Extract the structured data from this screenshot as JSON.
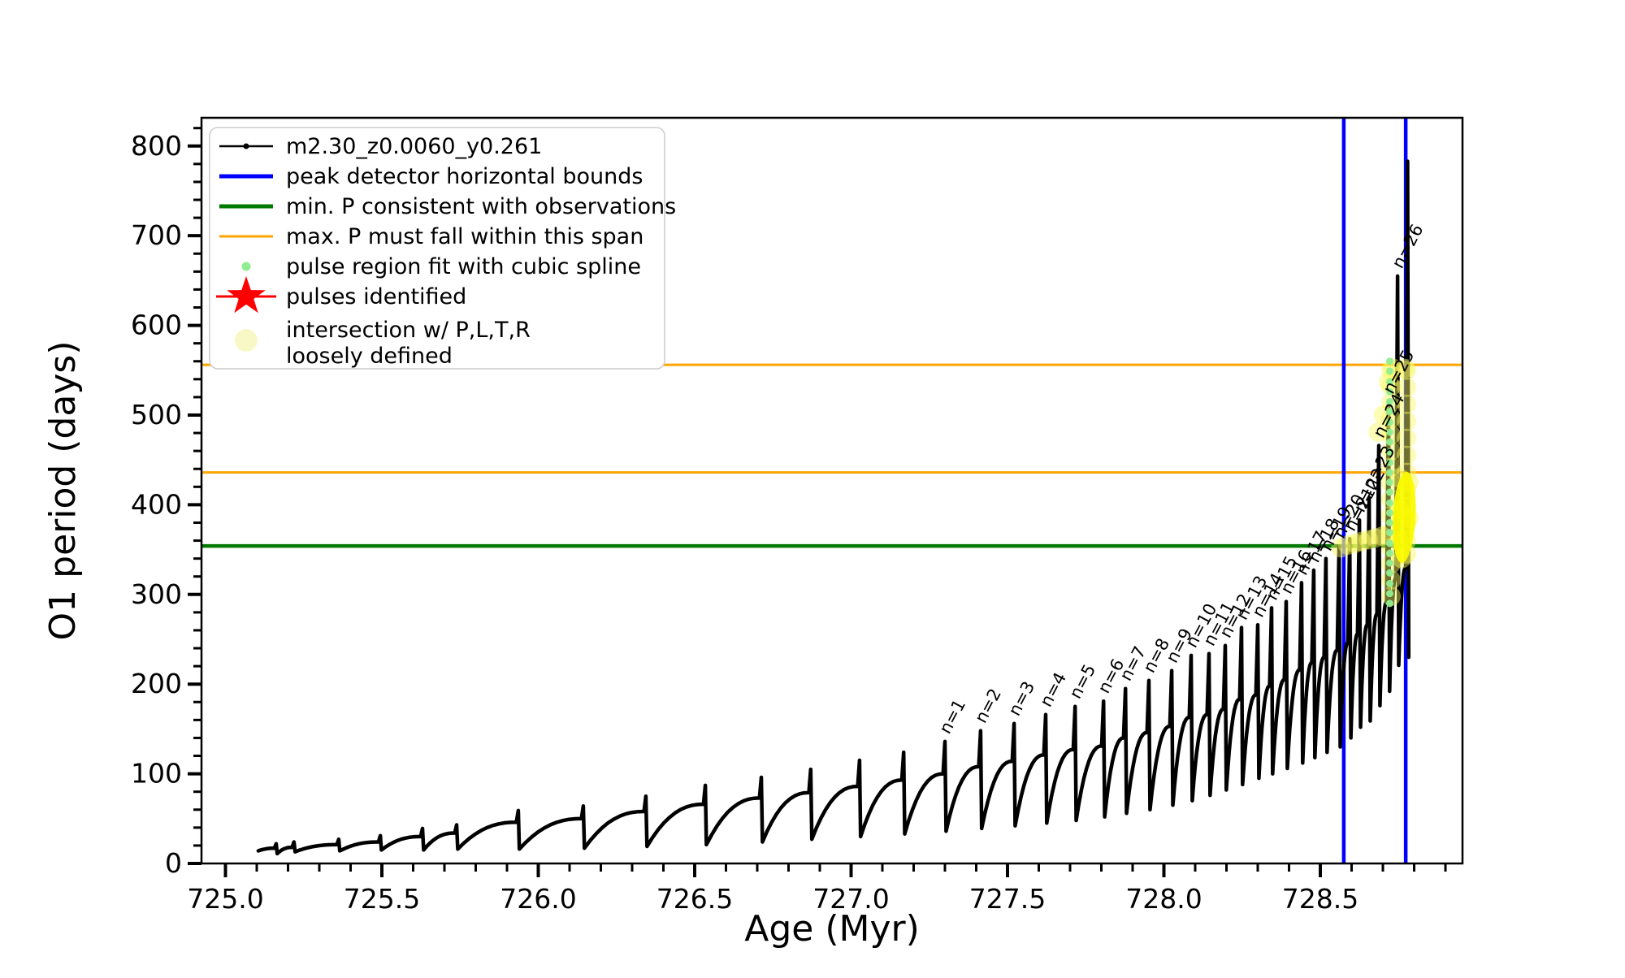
{
  "figure": {
    "xlabel": "Age (Myr)",
    "ylabel": "O1 period (days)"
  },
  "legend": {
    "entries": [
      {
        "marker": "line-dot",
        "color": "#000000",
        "lw": 2.5,
        "label": "m2.30_z0.0060_y0.261"
      },
      {
        "marker": "line",
        "color": "#0000ff",
        "lw": 5,
        "label": "peak detector horizontal bounds"
      },
      {
        "marker": "line",
        "color": "#007a00",
        "lw": 5,
        "label": "min. P consistent with observations"
      },
      {
        "marker": "line",
        "color": "#ffa500",
        "lw": 3,
        "label": "max. P must fall within this span"
      },
      {
        "marker": "dot",
        "color": "#90ee90",
        "label": "pulse region fit with cubic spline"
      },
      {
        "marker": "star",
        "color": "#ff0000",
        "label": "pulses identified"
      },
      {
        "marker": "circle",
        "color": "#f7f7c0",
        "label": "intersection w/ P,L,T,R",
        "label2": "loosely defined"
      }
    ]
  },
  "chart_data": {
    "type": "line",
    "title": "",
    "xlabel": "Age (Myr)",
    "ylabel": "O1 period (days)",
    "xlim": [
      724.9234,
      728.9545
    ],
    "ylim": [
      0,
      831.5
    ],
    "x_major_ticks": [
      {
        "v": 725.0,
        "label": "725.0"
      },
      {
        "v": 725.5,
        "label": "725.5"
      },
      {
        "v": 726.0,
        "label": "726.0"
      },
      {
        "v": 726.5,
        "label": "726.5"
      },
      {
        "v": 727.0,
        "label": "727.0"
      },
      {
        "v": 727.5,
        "label": "727.5"
      },
      {
        "v": 728.0,
        "label": "728.0"
      },
      {
        "v": 728.5,
        "label": "728.5"
      }
    ],
    "x_minor_step": 0.1,
    "y_major_ticks": [
      {
        "v": 0,
        "label": "0"
      },
      {
        "v": 100,
        "label": "100"
      },
      {
        "v": 200,
        "label": "200"
      },
      {
        "v": 300,
        "label": "300"
      },
      {
        "v": 400,
        "label": "400"
      },
      {
        "v": 500,
        "label": "500"
      },
      {
        "v": 600,
        "label": "600"
      },
      {
        "v": 700,
        "label": "700"
      },
      {
        "v": 800,
        "label": "800"
      }
    ],
    "y_minor_step": 20,
    "grid": false,
    "legend_position": "upper left",
    "hlines": [
      {
        "value": 556,
        "color": "#ffa500",
        "lw": 3,
        "meaning": "max. P span upper bound"
      },
      {
        "value": 436,
        "color": "#ffa500",
        "lw": 3,
        "meaning": "max. P span lower bound"
      },
      {
        "value": 354,
        "color": "#007a00",
        "lw": 4.5,
        "meaning": "min. P consistent with observations"
      }
    ],
    "vlines": [
      {
        "age": 728.575,
        "color": "#0000ff",
        "lw": 4.5,
        "meaning": "peak detector left bound"
      },
      {
        "age": 728.773,
        "color": "#0000ff",
        "lw": 4.5,
        "meaning": "peak detector right bound"
      }
    ],
    "series": [
      {
        "name": "m2.30_z0.0060_y0.261",
        "color": "#000000",
        "lw": 4.5,
        "start": {
          "age": 725.105,
          "value": 14
        },
        "pulses": [
          {
            "age": 725.162,
            "peak": 22,
            "shoulder": 17,
            "dip": 11
          },
          {
            "age": 725.219,
            "peak": 24,
            "shoulder": 18,
            "dip": 13
          },
          {
            "age": 725.362,
            "peak": 27,
            "shoulder": 21,
            "dip": 14
          },
          {
            "age": 725.495,
            "peak": 31,
            "shoulder": 24,
            "dip": 15
          },
          {
            "age": 725.63,
            "peak": 39,
            "shoulder": 30,
            "dip": 15
          },
          {
            "age": 725.739,
            "peak": 43,
            "shoulder": 34,
            "dip": 16
          },
          {
            "age": 725.936,
            "peak": 59,
            "shoulder": 46,
            "dip": 16
          },
          {
            "age": 726.144,
            "peak": 64,
            "shoulder": 50,
            "dip": 17
          },
          {
            "age": 726.344,
            "peak": 75,
            "shoulder": 58,
            "dip": 19
          },
          {
            "age": 726.534,
            "peak": 87,
            "shoulder": 66,
            "dip": 21
          },
          {
            "age": 726.713,
            "peak": 96,
            "shoulder": 73,
            "dip": 24
          },
          {
            "age": 726.871,
            "peak": 105,
            "shoulder": 79,
            "dip": 27
          },
          {
            "age": 727.027,
            "peak": 115,
            "shoulder": 86,
            "dip": 30
          },
          {
            "age": 727.168,
            "peak": 124,
            "shoulder": 93,
            "dip": 33
          },
          {
            "age": 727.3,
            "peak": 136,
            "shoulder": 100,
            "dip": 36,
            "label": "n=1"
          },
          {
            "age": 727.414,
            "peak": 148,
            "shoulder": 108,
            "dip": 39,
            "label": "n=2"
          },
          {
            "age": 727.521,
            "peak": 156,
            "shoulder": 114,
            "dip": 42,
            "label": "n=3"
          },
          {
            "age": 727.622,
            "peak": 166,
            "shoulder": 121,
            "dip": 45,
            "label": "n=4"
          },
          {
            "age": 727.716,
            "peak": 175,
            "shoulder": 127,
            "dip": 48,
            "label": "n=5"
          },
          {
            "age": 727.807,
            "peak": 181,
            "shoulder": 131,
            "dip": 52,
            "label": "n=6"
          },
          {
            "age": 727.877,
            "peak": 195,
            "shoulder": 140,
            "dip": 56,
            "label": "n=7"
          },
          {
            "age": 727.952,
            "peak": 204,
            "shoulder": 146,
            "dip": 60,
            "label": "n=8"
          },
          {
            "age": 728.025,
            "peak": 215,
            "shoulder": 153,
            "dip": 65,
            "label": "n=9"
          },
          {
            "age": 728.087,
            "peak": 232,
            "shoulder": 163,
            "dip": 70,
            "label": "n=10"
          },
          {
            "age": 728.144,
            "peak": 234,
            "shoulder": 166,
            "dip": 76,
            "label": "n=11"
          },
          {
            "age": 728.196,
            "peak": 243,
            "shoulder": 172,
            "dip": 82,
            "label": "n=12"
          },
          {
            "age": 728.248,
            "peak": 263,
            "shoulder": 183,
            "dip": 88,
            "label": "n=13"
          },
          {
            "age": 728.3,
            "peak": 266,
            "shoulder": 188,
            "dip": 95,
            "label": "n=14"
          },
          {
            "age": 728.344,
            "peak": 285,
            "shoulder": 198,
            "dip": 100,
            "label": "n=15"
          },
          {
            "age": 728.391,
            "peak": 292,
            "shoulder": 205,
            "dip": 106,
            "label": "n=16"
          },
          {
            "age": 728.44,
            "peak": 313,
            "shoulder": 216,
            "dip": 112,
            "label": "n=17"
          },
          {
            "age": 728.479,
            "peak": 327,
            "shoulder": 224,
            "dip": 118,
            "label": "n=18"
          },
          {
            "age": 728.518,
            "peak": 340,
            "shoulder": 230,
            "dip": 124,
            "label": "n=19"
          },
          {
            "age": 728.56,
            "peak": 354,
            "shoulder": 238,
            "dip": 130,
            "label": "n=20"
          },
          {
            "age": 728.594,
            "peak": 362,
            "shoulder": 246,
            "dip": 140,
            "label": "n=21"
          },
          {
            "age": 728.625,
            "peak": 383,
            "shoulder": 256,
            "dip": 152,
            "label": "n=22"
          },
          {
            "age": 728.656,
            "peak": 408,
            "shoulder": 266,
            "dip": 159,
            "label": "n=23"
          },
          {
            "age": 728.687,
            "peak": 466,
            "shoulder": 278,
            "dip": 176,
            "label": "n=24"
          },
          {
            "age": 728.718,
            "peak": 515,
            "shoulder": 292,
            "dip": 192,
            "label": "n=25"
          },
          {
            "age": 728.747,
            "peak": 655,
            "shoulder": 318,
            "dip": 221,
            "label": "n=26"
          },
          {
            "age": 728.779,
            "peak": 783,
            "shoulder": 330,
            "dip": 230
          }
        ]
      }
    ],
    "spline_dots": {
      "age": 728.722,
      "color": "#90ee90",
      "r": 4.5,
      "values": [
        560,
        549,
        537,
        526,
        515,
        504,
        492,
        481,
        470,
        459,
        447,
        436,
        425,
        414,
        402,
        391,
        380,
        369,
        357,
        346,
        335,
        324,
        312,
        301,
        290
      ]
    },
    "intersection_markers": {
      "color": "#f8f860",
      "r": 12,
      "opacity": 0.45,
      "points": [
        {
          "age": 728.726,
          "value": 550
        },
        {
          "age": 728.726,
          "value": 532
        },
        {
          "age": 728.726,
          "value": 514
        },
        {
          "age": 728.726,
          "value": 496
        },
        {
          "age": 728.726,
          "value": 478
        },
        {
          "age": 728.726,
          "value": 460
        },
        {
          "age": 728.726,
          "value": 442
        },
        {
          "age": 728.726,
          "value": 424
        },
        {
          "age": 728.726,
          "value": 406
        },
        {
          "age": 728.726,
          "value": 388
        },
        {
          "age": 728.726,
          "value": 370
        },
        {
          "age": 728.726,
          "value": 352
        },
        {
          "age": 728.726,
          "value": 334
        },
        {
          "age": 728.726,
          "value": 316
        },
        {
          "age": 728.726,
          "value": 298
        },
        {
          "age": 728.775,
          "value": 550
        },
        {
          "age": 728.775,
          "value": 531
        },
        {
          "age": 728.775,
          "value": 512
        },
        {
          "age": 728.775,
          "value": 493
        },
        {
          "age": 728.775,
          "value": 474
        },
        {
          "age": 728.775,
          "value": 455
        },
        {
          "age": 728.775,
          "value": 436
        },
        {
          "age": 728.775,
          "value": 417
        },
        {
          "age": 728.775,
          "value": 398
        },
        {
          "age": 728.775,
          "value": 379
        },
        {
          "age": 728.775,
          "value": 360
        },
        {
          "age": 728.775,
          "value": 345
        },
        {
          "age": 728.566,
          "value": 352
        },
        {
          "age": 728.588,
          "value": 355
        },
        {
          "age": 728.61,
          "value": 357
        },
        {
          "age": 728.632,
          "value": 359
        },
        {
          "age": 728.654,
          "value": 361
        },
        {
          "age": 728.676,
          "value": 363
        },
        {
          "age": 728.698,
          "value": 365
        },
        {
          "age": 728.685,
          "value": 481
        },
        {
          "age": 728.702,
          "value": 500
        },
        {
          "age": 728.718,
          "value": 537
        },
        {
          "age": 728.733,
          "value": 552
        },
        {
          "age": 728.77,
          "value": 552
        },
        {
          "age": 728.752,
          "value": 430
        },
        {
          "age": 728.752,
          "value": 395
        },
        {
          "age": 728.752,
          "value": 360
        },
        {
          "age": 728.783,
          "value": 425
        },
        {
          "age": 728.783,
          "value": 385
        },
        {
          "age": 728.76,
          "value": 340
        }
      ],
      "blob": {
        "age": 728.768,
        "value_top": 437,
        "value_bottom": 335,
        "color": "#fbfb00",
        "opacity": 0.93
      }
    }
  }
}
